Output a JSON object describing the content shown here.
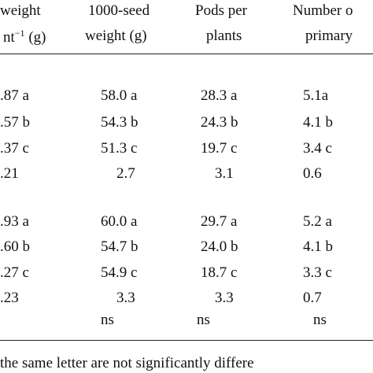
{
  "header": {
    "columns": [
      {
        "line1": "weight",
        "line2": "nt",
        "sup": "−1",
        "unit": "(g)"
      },
      {
        "line1": "1000-seed",
        "line2": "weight (g)"
      },
      {
        "line1": "Pods per",
        "line2": "plants"
      },
      {
        "line1": "Number o",
        "line2": "primary"
      }
    ]
  },
  "table": {
    "rows": [
      [
        ".87 a",
        "58.0 a",
        "28.3 a",
        "5.1a"
      ],
      [
        ".57 b",
        "54.3 b",
        "24.3 b",
        "4.1 b"
      ],
      [
        ".37 c",
        "51.3 c",
        "19.7 c",
        "3.4 c"
      ],
      [
        ".21",
        "2.7",
        "3.1",
        "0.6"
      ],
      [
        ".93 a",
        "60.0 a",
        "29.7 a",
        "5.2 a"
      ],
      [
        ".60 b",
        "54.7 b",
        "24.0 b",
        "4.1 b"
      ],
      [
        ".27 c",
        "54.9 c",
        "18.7 c",
        "3.3 c"
      ],
      [
        ".23",
        "3.3",
        "3.3",
        "0.7"
      ],
      [
        null,
        "ns",
        "ns",
        "ns"
      ]
    ]
  },
  "footnote": "the same letter are not significantly differe"
}
